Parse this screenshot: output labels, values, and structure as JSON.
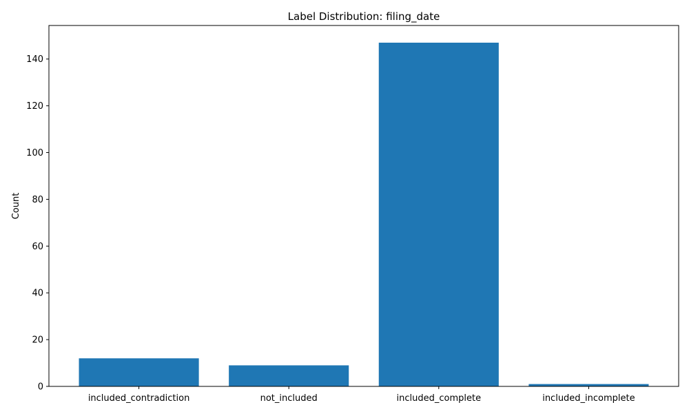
{
  "chart_data": {
    "type": "bar",
    "title": "Label Distribution: filing_date",
    "xlabel": "",
    "ylabel": "Count",
    "categories": [
      "included_contradiction",
      "not_included",
      "included_complete",
      "included_incomplete"
    ],
    "values": [
      12,
      9,
      147,
      1
    ],
    "ylim": [
      0,
      154.35
    ],
    "yticks": [
      0,
      20,
      40,
      60,
      80,
      100,
      120,
      140
    ],
    "bar_color": "#1f77b4",
    "grid": false,
    "legend": "none"
  }
}
